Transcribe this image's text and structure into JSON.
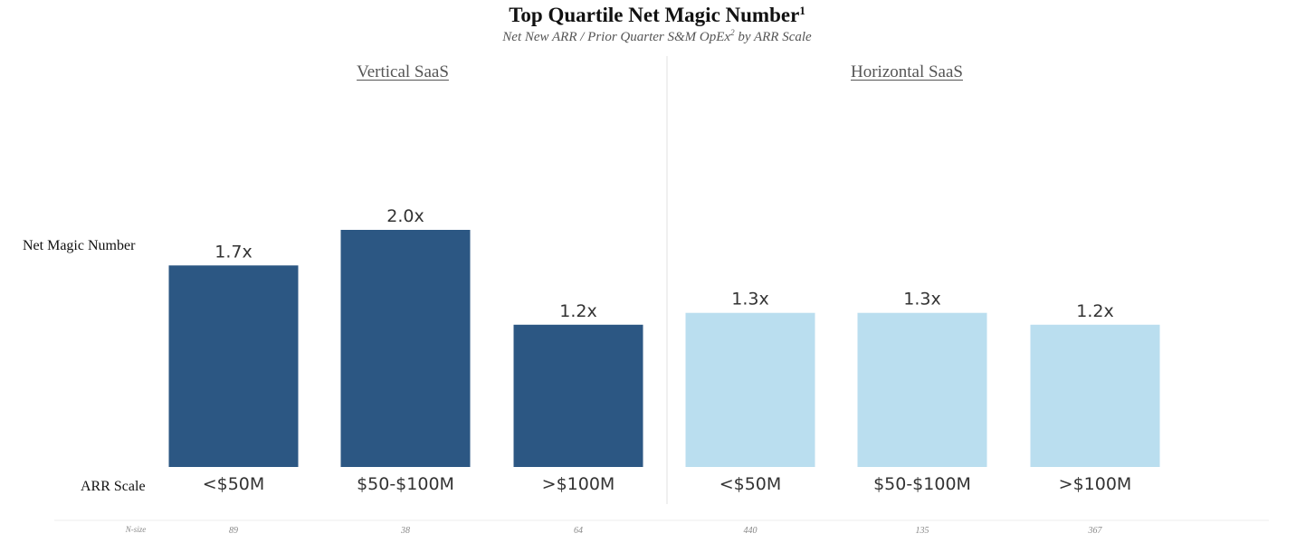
{
  "chart_data": {
    "type": "bar",
    "title": "Top Quartile Net Magic Number",
    "title_footnote": "1",
    "subtitle": "Net New ARR / Prior Quarter S&M OpEx",
    "subtitle_footnote": "2",
    "subtitle_suffix": " by ARR Scale",
    "ylabel": "Net Magic Number",
    "xlabel": "ARR Scale",
    "nsize_label": "N-size",
    "ylim": [
      0,
      2.05
    ],
    "panels": [
      {
        "name": "Vertical SaaS",
        "color": "#2c5783",
        "categories": [
          "<$50M",
          "$50-$100M",
          ">$100M"
        ],
        "values": [
          1.7,
          2.0,
          1.2
        ],
        "value_labels": [
          "1.7x",
          "2.0x",
          "1.2x"
        ],
        "n_size": [
          "89",
          "38",
          "64"
        ]
      },
      {
        "name": "Horizontal SaaS",
        "color": "#badeef",
        "categories": [
          "<$50M",
          "$50-$100M",
          ">$100M"
        ],
        "values": [
          1.3,
          1.3,
          1.2
        ],
        "value_labels": [
          "1.3x",
          "1.3x",
          "1.2x"
        ],
        "n_size": [
          "440",
          "135",
          "367"
        ]
      }
    ]
  }
}
